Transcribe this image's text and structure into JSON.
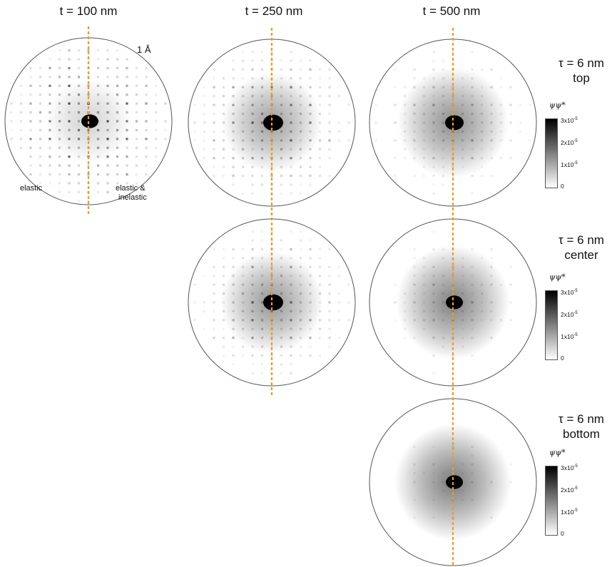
{
  "columns": [
    {
      "title": "t = 100 nm"
    },
    {
      "title": "t = 250 nm"
    },
    {
      "title": "t = 500 nm"
    }
  ],
  "rows": [
    {
      "label_line1": "τ = 6 nm",
      "label_line2": "top"
    },
    {
      "label_line1": "τ = 6 nm",
      "label_line2": "center"
    },
    {
      "label_line1": "τ = 6 nm",
      "label_line2": "bottom"
    }
  ],
  "colorbar": {
    "title": "ψψ*",
    "ticks": [
      {
        "base": "3x10",
        "exp": "-5"
      },
      {
        "base": "2x10",
        "exp": "-5"
      },
      {
        "base": "1x10",
        "exp": "-5"
      },
      {
        "base": "0",
        "exp": ""
      }
    ]
  },
  "annotations": {
    "scale": "1 Å",
    "left_half": "elastic",
    "right_half_line1": "elastic &",
    "right_half_line2": "inelastic"
  },
  "colors": {
    "divider": "#f39a1e",
    "circle": "#555555"
  }
}
